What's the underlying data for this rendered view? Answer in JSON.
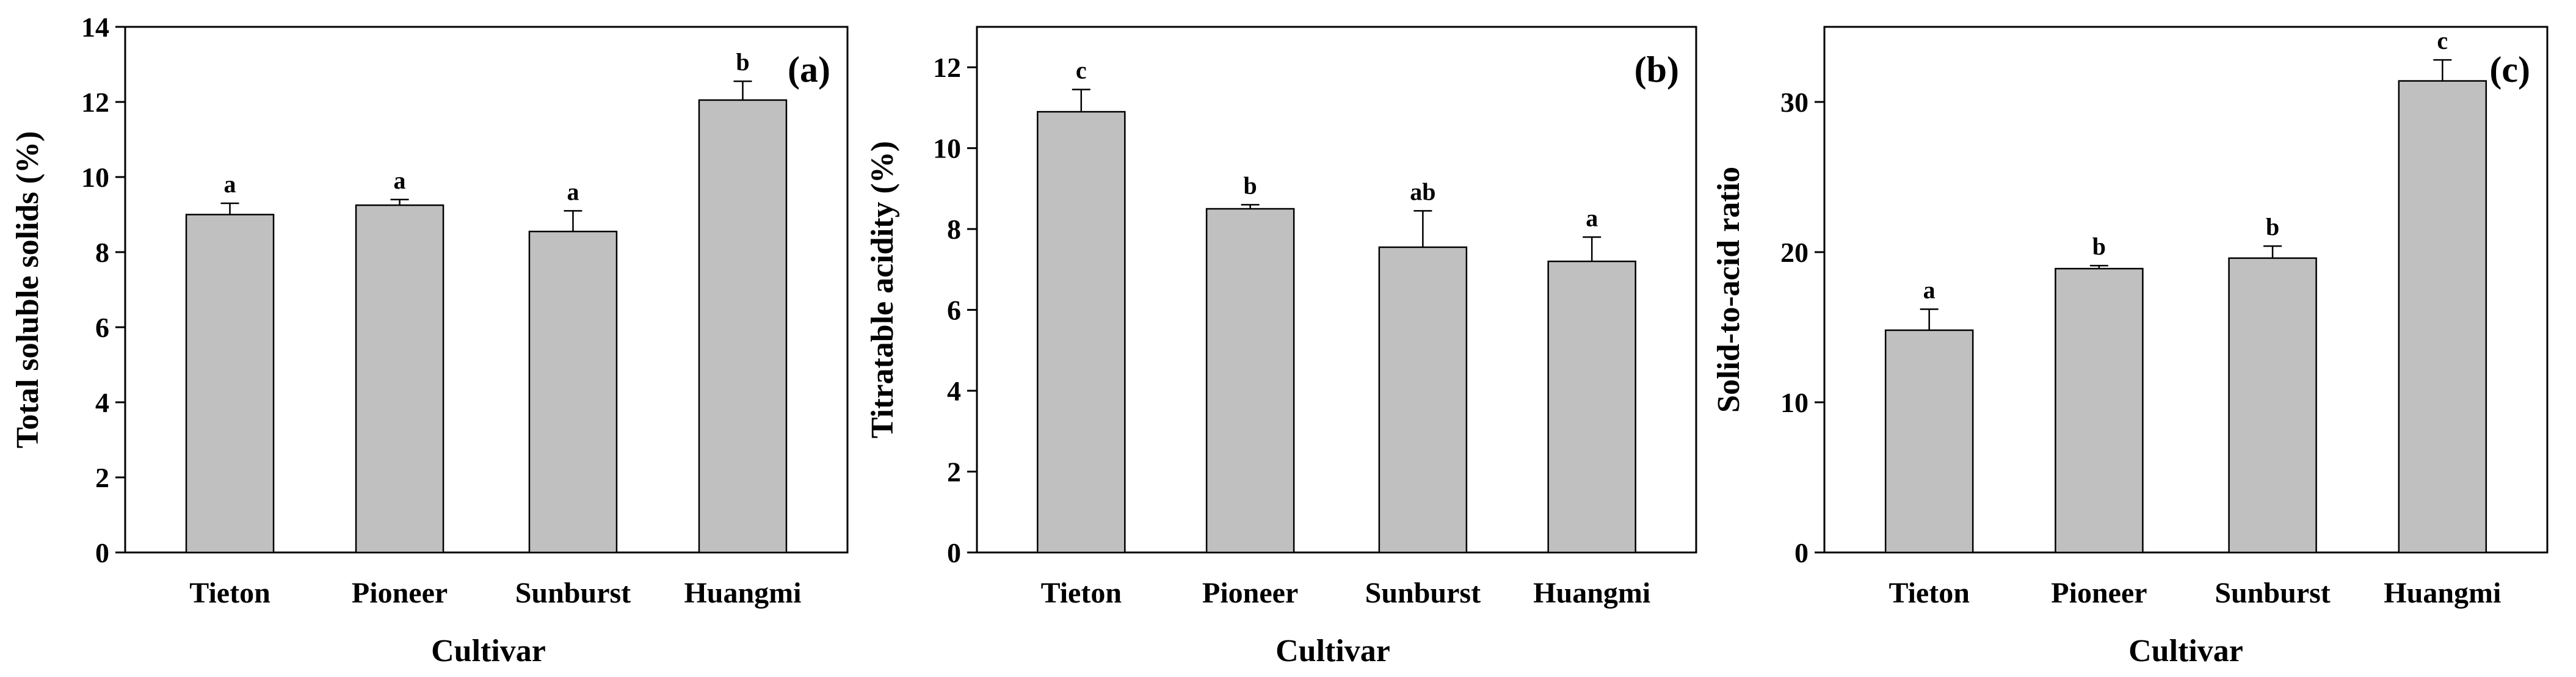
{
  "figure": {
    "panels": [
      "(a)",
      "(b)",
      "(c)"
    ]
  },
  "chart_data": [
    {
      "type": "bar",
      "panel_label": "(a)",
      "categories": [
        "Tieton",
        "Pioneer",
        "Sunburst",
        "Huangmi"
      ],
      "values": [
        9.0,
        9.25,
        8.55,
        12.05
      ],
      "errors": [
        0.3,
        0.15,
        0.55,
        0.5
      ],
      "significance": [
        "a",
        "a",
        "a",
        "b"
      ],
      "xlabel": "Cultivar",
      "ylabel": "Total soluble solids (%)",
      "ylim": [
        0,
        14
      ],
      "yticks": [
        0,
        2,
        4,
        6,
        8,
        10,
        12,
        14
      ],
      "bar_color": "#c0c0c0",
      "grid": false
    },
    {
      "type": "bar",
      "panel_label": "(b)",
      "categories": [
        "Tieton",
        "Pioneer",
        "Sunburst",
        "Huangmi"
      ],
      "values": [
        10.9,
        8.5,
        7.55,
        7.2
      ],
      "errors": [
        0.55,
        0.1,
        0.9,
        0.6
      ],
      "significance": [
        "c",
        "b",
        "ab",
        "a"
      ],
      "xlabel": "Cultivar",
      "ylabel": "Titratable acidity (%)",
      "ylim": [
        0,
        13
      ],
      "yticks": [
        0,
        2,
        4,
        6,
        8,
        10,
        12
      ],
      "bar_color": "#c0c0c0",
      "grid": false
    },
    {
      "type": "bar",
      "panel_label": "(c)",
      "categories": [
        "Tieton",
        "Pioneer",
        "Sunburst",
        "Huangmi"
      ],
      "values": [
        14.8,
        18.9,
        19.6,
        31.4
      ],
      "errors": [
        1.4,
        0.2,
        0.8,
        1.4
      ],
      "significance": [
        "a",
        "b",
        "b",
        "c"
      ],
      "xlabel": "Cultivar",
      "ylabel": "Solid-to-acid ratio",
      "ylim": [
        0,
        35
      ],
      "yticks": [
        0,
        10,
        20,
        30
      ],
      "bar_color": "#c0c0c0",
      "grid": false
    }
  ]
}
